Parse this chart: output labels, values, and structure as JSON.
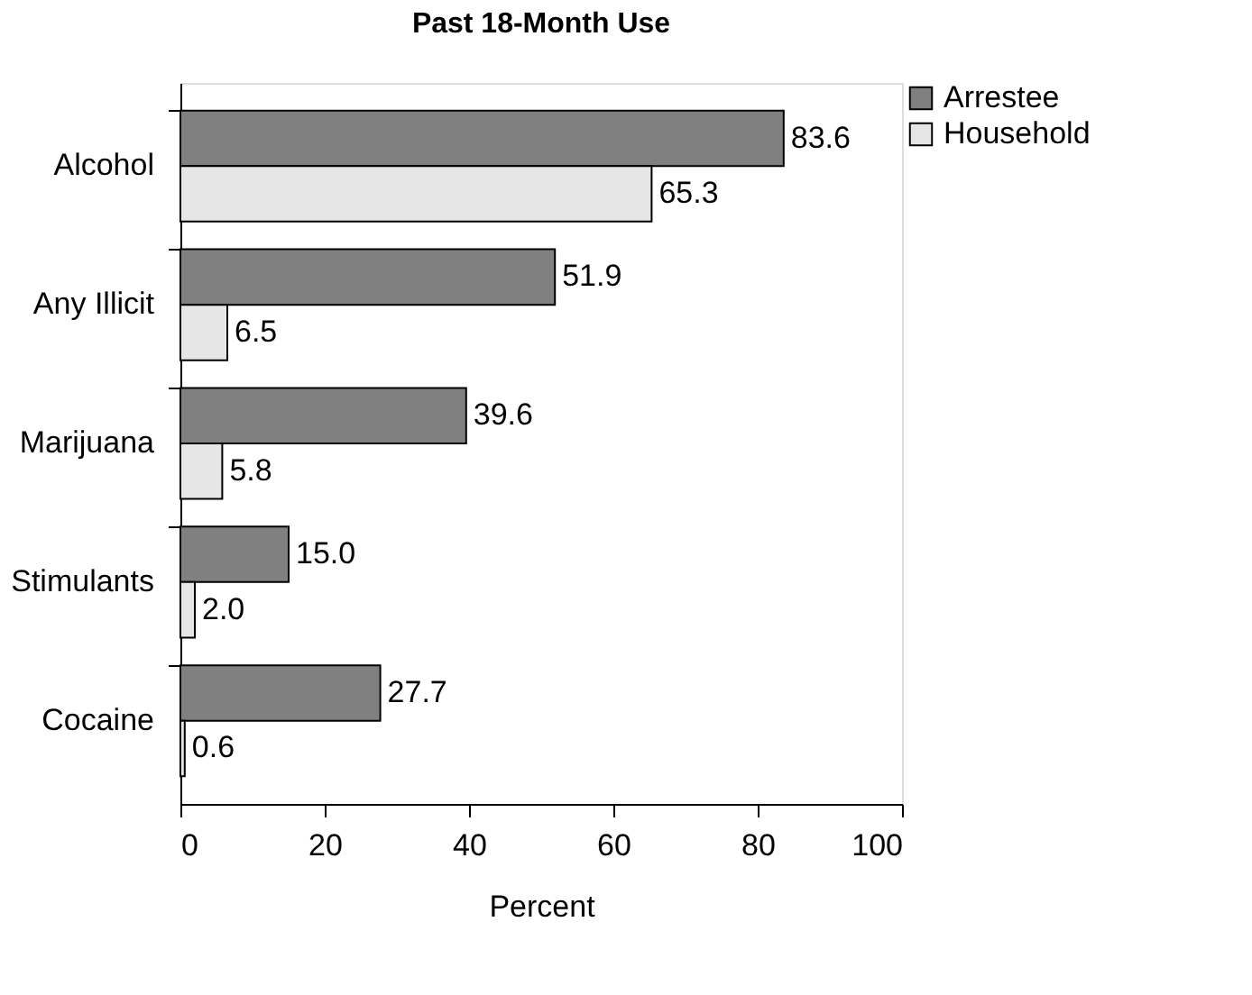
{
  "chart_data": {
    "type": "bar",
    "orientation": "horizontal",
    "title": "Past 18-Month Use",
    "xlabel": "Percent",
    "categories": [
      "Alcohol",
      "Any Illicit",
      "Marijuana",
      "Stimulants",
      "Cocaine"
    ],
    "series": [
      {
        "name": "Arrestee",
        "color": "#808080",
        "values": [
          83.6,
          51.9,
          39.6,
          15.0,
          27.7
        ],
        "value_labels": [
          "83.6",
          "51.9",
          "39.6",
          "15.0",
          "27.7"
        ]
      },
      {
        "name": "Household",
        "color": "#e6e6e6",
        "values": [
          65.3,
          6.5,
          5.8,
          2.0,
          0.6
        ],
        "value_labels": [
          "65.3",
          "6.5",
          "5.8",
          "2.0",
          "0.6"
        ]
      }
    ],
    "xlim": [
      0,
      100
    ],
    "xticks": [
      0,
      20,
      40,
      60,
      80,
      100
    ],
    "grid": false,
    "legend": "right"
  }
}
